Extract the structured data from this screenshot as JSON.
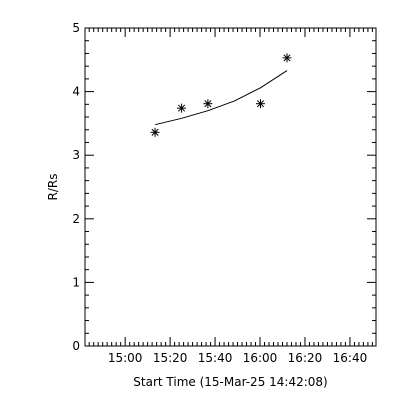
{
  "chart_data": {
    "type": "scatter",
    "title": "",
    "xlabel": "Start Time (15-Mar-25 14:42:08)",
    "ylabel": "R/Rs",
    "x_tick_labels": [
      "15:00",
      "15:20",
      "15:40",
      "16:00",
      "16:20",
      "16:40"
    ],
    "x_tick_minutes": [
      900,
      920,
      940,
      960,
      980,
      1000
    ],
    "xlim_minutes": [
      882.13,
      1011.6
    ],
    "y_tick_labels": [
      "0",
      "1",
      "2",
      "3",
      "4",
      "5"
    ],
    "y_tick_values": [
      0,
      1,
      2,
      3,
      4,
      5
    ],
    "ylim": [
      0,
      5
    ],
    "marker": "asterisk",
    "grid": false,
    "series": [
      {
        "points": [
          {
            "time": "15:13",
            "t_min": 913.3,
            "y": 3.36
          },
          {
            "time": "15:25",
            "t_min": 925.1,
            "y": 3.74
          },
          {
            "time": "15:37",
            "t_min": 936.8,
            "y": 3.81
          },
          {
            "time": "16:00",
            "t_min": 960.2,
            "y": 3.81
          },
          {
            "time": "16:12",
            "t_min": 972.0,
            "y": 4.53
          }
        ]
      }
    ],
    "fit": {
      "type": "curve",
      "points": [
        {
          "t_min": 913.3,
          "y": 3.48
        },
        {
          "t_min": 925.1,
          "y": 3.58
        },
        {
          "t_min": 936.8,
          "y": 3.7
        },
        {
          "t_min": 948.5,
          "y": 3.85
        },
        {
          "t_min": 960.2,
          "y": 4.06
        },
        {
          "t_min": 972.0,
          "y": 4.33
        }
      ]
    }
  }
}
